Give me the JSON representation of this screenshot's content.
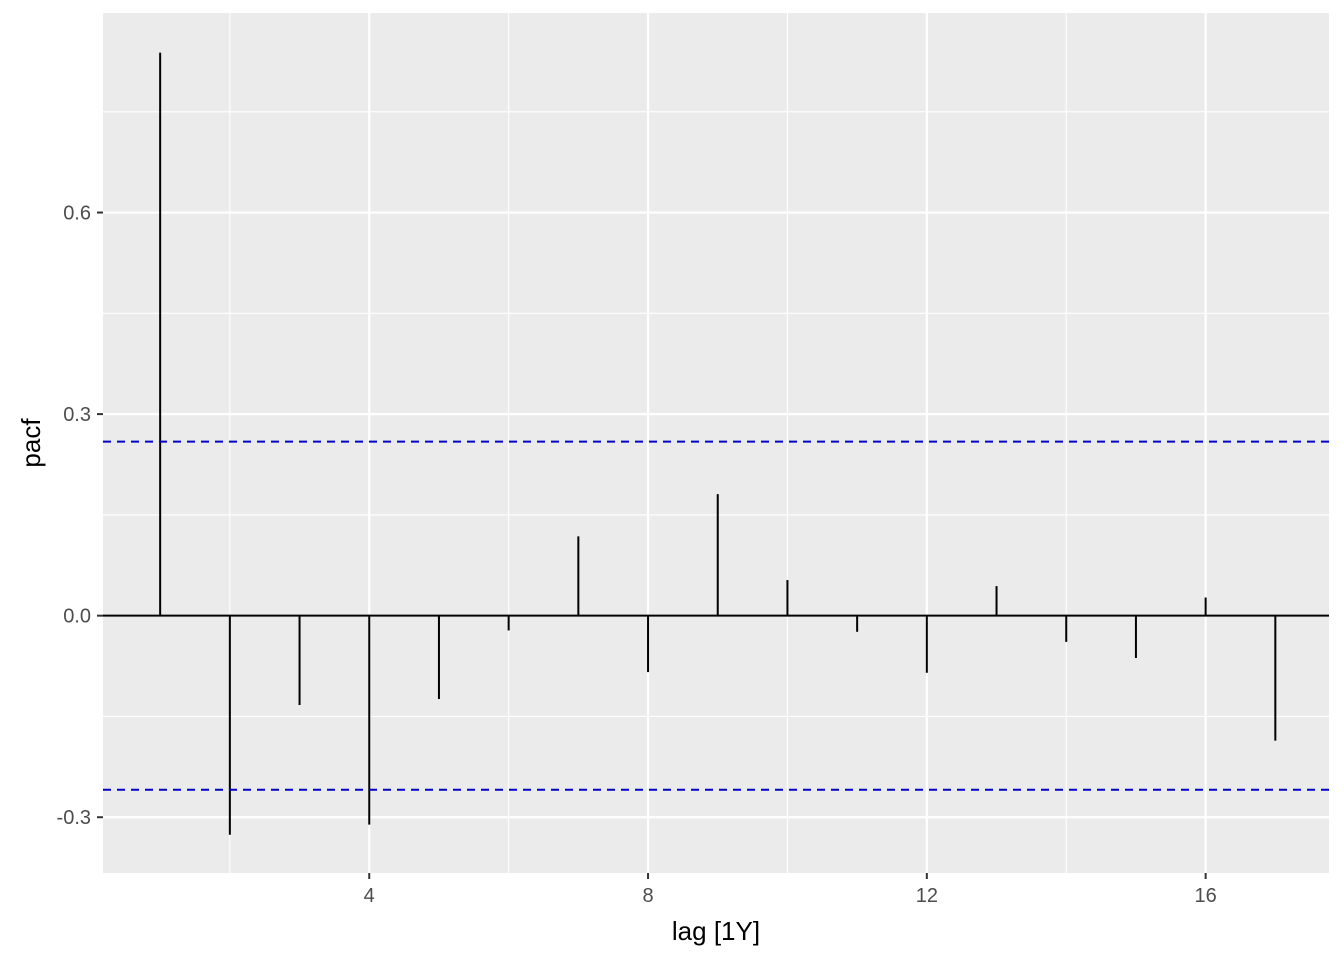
{
  "chart_data": {
    "type": "bar",
    "title": "",
    "xlabel": "lag [1Y]",
    "ylabel": "pacf",
    "x": [
      1,
      2,
      3,
      4,
      5,
      6,
      7,
      8,
      9,
      10,
      11,
      12,
      13,
      14,
      15,
      16,
      17
    ],
    "series": [
      {
        "values": [
          0.838,
          -0.326,
          -0.133,
          -0.311,
          -0.124,
          -0.022,
          0.118,
          -0.084,
          0.181,
          0.053,
          -0.024,
          -0.085,
          0.044,
          -0.039,
          -0.063,
          0.027,
          -0.186
        ]
      }
    ],
    "confidence_bounds": [
      0.259,
      -0.259
    ],
    "xlim": [
      0.18,
      17.77
    ],
    "ylim": [
      -0.383,
      0.897
    ],
    "x_ticks": [
      4,
      8,
      12,
      16
    ],
    "x_tick_labels": [
      "4",
      "8",
      "12",
      "16"
    ],
    "y_ticks": [
      -0.3,
      0.0,
      0.3,
      0.6
    ],
    "y_tick_labels": [
      "-0.3",
      "0.0",
      "0.3",
      "0.6"
    ],
    "grid": true,
    "legend": "none",
    "colors": {
      "panel_background": "#EBEBEB",
      "grid": "#FFFFFF",
      "segment": "#000000",
      "zero_line": "#000000",
      "bound_line": "#0000CC",
      "tick_label": "#4D4D4D"
    }
  }
}
